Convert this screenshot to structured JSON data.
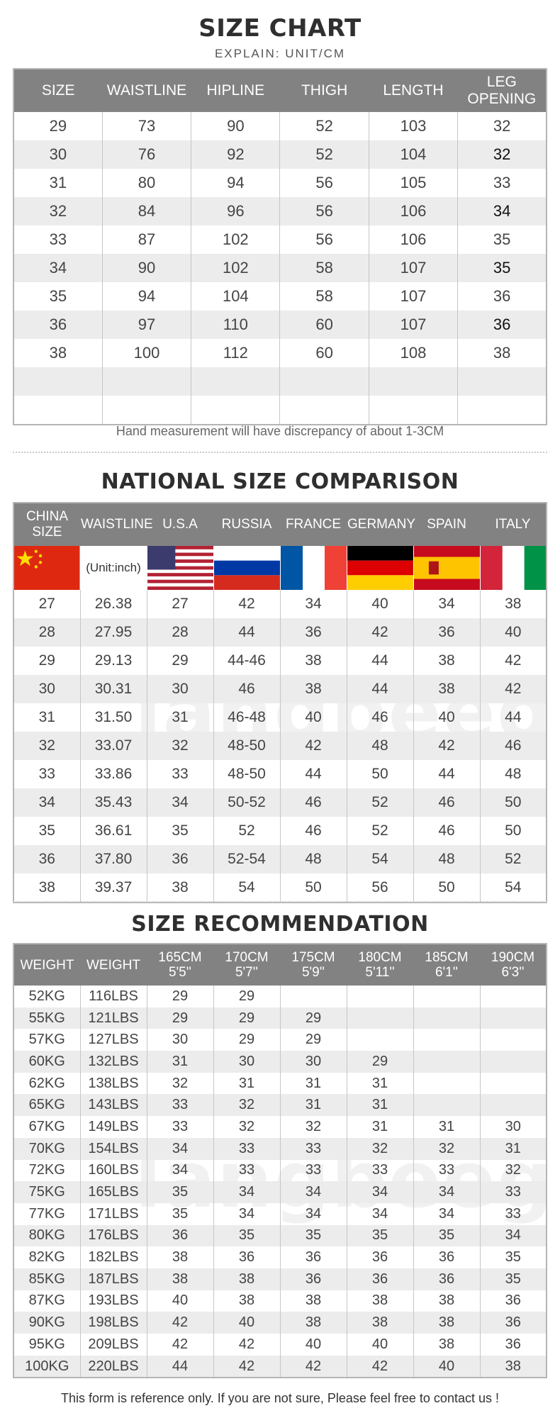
{
  "size_chart": {
    "title": "SIZE CHART",
    "subtitle": "EXPLAIN: UNIT/CM",
    "headers": [
      "SIZE",
      "WAISTLINE",
      "HIPLINE",
      "THIGH",
      "LENGTH",
      "LEG OPENING"
    ],
    "rows": [
      [
        "29",
        "73",
        "90",
        "52",
        "103",
        "32"
      ],
      [
        "30",
        "76",
        "92",
        "52",
        "104",
        "32"
      ],
      [
        "31",
        "80",
        "94",
        "56",
        "105",
        "33"
      ],
      [
        "32",
        "84",
        "96",
        "56",
        "106",
        "34"
      ],
      [
        "33",
        "87",
        "102",
        "56",
        "106",
        "35"
      ],
      [
        "34",
        "90",
        "102",
        "58",
        "107",
        "35"
      ],
      [
        "35",
        "94",
        "104",
        "58",
        "107",
        "36"
      ],
      [
        "36",
        "97",
        "110",
        "60",
        "107",
        "36"
      ],
      [
        "38",
        "100",
        "112",
        "60",
        "108",
        "38"
      ],
      [
        "",
        "",
        "",
        "",
        "",
        ""
      ],
      [
        "",
        "",
        "",
        "",
        "",
        ""
      ]
    ],
    "note": "Hand measurement will have discrepancy of about 1-3CM"
  },
  "national": {
    "title": "NATIONAL SIZE COMPARISON",
    "headers": [
      "CHINA SIZE",
      "WAISTLINE",
      "U.S.A",
      "RUSSIA",
      "FRANCE",
      "GERMANY",
      "SPAIN",
      "ITALY"
    ],
    "flags": [
      "china-flag",
      "unit",
      "usa-flag",
      "russia-flag",
      "france-flag",
      "germany-flag",
      "spain-flag",
      "italy-flag"
    ],
    "unit_label": "(Unit:inch)",
    "rows": [
      [
        "27",
        "26.38",
        "27",
        "42",
        "34",
        "40",
        "34",
        "38"
      ],
      [
        "28",
        "27.95",
        "28",
        "44",
        "36",
        "42",
        "36",
        "40"
      ],
      [
        "29",
        "29.13",
        "29",
        "44-46",
        "38",
        "44",
        "38",
        "42"
      ],
      [
        "30",
        "30.31",
        "30",
        "46",
        "38",
        "44",
        "38",
        "42"
      ],
      [
        "31",
        "31.50",
        "31",
        "46-48",
        "40",
        "46",
        "40",
        "44"
      ],
      [
        "32",
        "33.07",
        "32",
        "48-50",
        "42",
        "48",
        "42",
        "46"
      ],
      [
        "33",
        "33.86",
        "33",
        "48-50",
        "44",
        "50",
        "44",
        "48"
      ],
      [
        "34",
        "35.43",
        "34",
        "50-52",
        "46",
        "52",
        "46",
        "50"
      ],
      [
        "35",
        "36.61",
        "35",
        "52",
        "46",
        "52",
        "46",
        "50"
      ],
      [
        "36",
        "37.80",
        "36",
        "52-54",
        "48",
        "54",
        "48",
        "52"
      ],
      [
        "38",
        "39.37",
        "38",
        "54",
        "50",
        "56",
        "50",
        "54"
      ]
    ]
  },
  "recommendation": {
    "title": "SIZE RECOMMENDATION",
    "headers": [
      [
        "WEIGHT",
        ""
      ],
      [
        "WEIGHT",
        ""
      ],
      [
        "165CM",
        "5'5''"
      ],
      [
        "170CM",
        "5'7''"
      ],
      [
        "175CM",
        "5'9''"
      ],
      [
        "180CM",
        "5'11''"
      ],
      [
        "185CM",
        "6'1''"
      ],
      [
        "190CM",
        "6'3''"
      ]
    ],
    "rows": [
      [
        "52KG",
        "116LBS",
        "29",
        "29",
        "",
        "",
        "",
        ""
      ],
      [
        "55KG",
        "121LBS",
        "29",
        "29",
        "29",
        "",
        "",
        ""
      ],
      [
        "57KG",
        "127LBS",
        "30",
        "29",
        "29",
        "",
        "",
        ""
      ],
      [
        "60KG",
        "132LBS",
        "31",
        "30",
        "30",
        "29",
        "",
        ""
      ],
      [
        "62KG",
        "138LBS",
        "32",
        "31",
        "31",
        "31",
        "",
        ""
      ],
      [
        "65KG",
        "143LBS",
        "33",
        "32",
        "31",
        "31",
        "",
        ""
      ],
      [
        "67KG",
        "149LBS",
        "33",
        "32",
        "32",
        "31",
        "31",
        "30"
      ],
      [
        "70KG",
        "154LBS",
        "34",
        "33",
        "33",
        "32",
        "32",
        "31"
      ],
      [
        "72KG",
        "160LBS",
        "34",
        "33",
        "33",
        "33",
        "33",
        "32"
      ],
      [
        "75KG",
        "165LBS",
        "35",
        "34",
        "34",
        "34",
        "34",
        "33"
      ],
      [
        "77KG",
        "171LBS",
        "35",
        "34",
        "34",
        "34",
        "34",
        "33"
      ],
      [
        "80KG",
        "176LBS",
        "36",
        "35",
        "35",
        "35",
        "35",
        "34"
      ],
      [
        "82KG",
        "182LBS",
        "38",
        "36",
        "36",
        "36",
        "36",
        "35"
      ],
      [
        "85KG",
        "187LBS",
        "38",
        "38",
        "36",
        "36",
        "36",
        "35"
      ],
      [
        "87KG",
        "193LBS",
        "40",
        "38",
        "38",
        "38",
        "38",
        "36"
      ],
      [
        "90KG",
        "198LBS",
        "42",
        "40",
        "38",
        "38",
        "38",
        "36"
      ],
      [
        "95KG",
        "209LBS",
        "42",
        "42",
        "40",
        "40",
        "38",
        "36"
      ],
      [
        "100KG",
        "220LBS",
        "44",
        "42",
        "42",
        "42",
        "40",
        "38"
      ]
    ],
    "note": "This form is reference only. If you are not sure, Please feel free to contact us !"
  },
  "watermark": "langbeeguar",
  "colors": {
    "header_bg": "#828282",
    "alt_row": "#ececec",
    "border": "#b5b5b5"
  }
}
